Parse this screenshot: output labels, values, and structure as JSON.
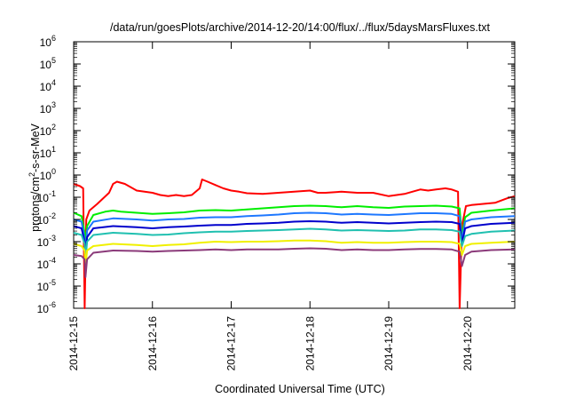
{
  "chart_data": {
    "type": "line",
    "title": "/data/run/goesPlots/archive/2014-12-20/14:00/flux/../flux/5daysMarsFluxes.txt",
    "xlabel": "Coordinated Universal Time (UTC)",
    "ylabel_base": "protons/cm",
    "ylabel_sup": "2",
    "ylabel_rest": "-s-sr-MeV",
    "yscale": "log",
    "ylim_exp": [
      -6,
      6
    ],
    "ytick_exponents": [
      -6,
      -5,
      -4,
      -3,
      -2,
      -1,
      0,
      1,
      2,
      3,
      4,
      5,
      6
    ],
    "ytick_base": "10",
    "xlim_days": [
      0,
      5.6
    ],
    "x_ticks": [
      {
        "label": "2014-12-15",
        "day": 0
      },
      {
        "label": "2014-12-16",
        "day": 1
      },
      {
        "label": "2014-12-17",
        "day": 2
      },
      {
        "label": "2014-12-18",
        "day": 3
      },
      {
        "label": "2014-12-19",
        "day": 4
      },
      {
        "label": "2014-12-20",
        "day": 5
      }
    ],
    "grid": false,
    "legend": "none",
    "series": [
      {
        "color": "#ff0000",
        "points": [
          [
            0.0,
            -0.4
          ],
          [
            0.08,
            -0.5
          ],
          [
            0.12,
            -0.6
          ],
          [
            0.14,
            -6.0
          ],
          [
            0.16,
            -2.0
          ],
          [
            0.2,
            -1.6
          ],
          [
            0.3,
            -1.3
          ],
          [
            0.45,
            -0.8
          ],
          [
            0.5,
            -0.4
          ],
          [
            0.55,
            -0.3
          ],
          [
            0.65,
            -0.4
          ],
          [
            0.8,
            -0.7
          ],
          [
            1.0,
            -0.8
          ],
          [
            1.1,
            -0.9
          ],
          [
            1.2,
            -0.95
          ],
          [
            1.3,
            -0.9
          ],
          [
            1.4,
            -0.95
          ],
          [
            1.5,
            -0.9
          ],
          [
            1.6,
            -0.6
          ],
          [
            1.63,
            -0.2
          ],
          [
            1.7,
            -0.3
          ],
          [
            1.8,
            -0.45
          ],
          [
            1.9,
            -0.6
          ],
          [
            2.0,
            -0.7
          ],
          [
            2.1,
            -0.75
          ],
          [
            2.2,
            -0.82
          ],
          [
            2.4,
            -0.85
          ],
          [
            2.6,
            -0.8
          ],
          [
            2.8,
            -0.75
          ],
          [
            3.0,
            -0.7
          ],
          [
            3.1,
            -0.8
          ],
          [
            3.2,
            -0.8
          ],
          [
            3.4,
            -0.75
          ],
          [
            3.6,
            -0.8
          ],
          [
            3.8,
            -0.8
          ],
          [
            4.0,
            -0.95
          ],
          [
            4.1,
            -0.9
          ],
          [
            4.2,
            -0.85
          ],
          [
            4.3,
            -0.75
          ],
          [
            4.4,
            -0.65
          ],
          [
            4.5,
            -0.7
          ],
          [
            4.6,
            -0.65
          ],
          [
            4.72,
            -0.6
          ],
          [
            4.8,
            -0.65
          ],
          [
            4.88,
            -0.75
          ],
          [
            4.9,
            -6.0
          ],
          [
            4.93,
            -2.3
          ],
          [
            4.98,
            -1.4
          ],
          [
            5.05,
            -1.35
          ],
          [
            5.2,
            -1.3
          ],
          [
            5.35,
            -1.25
          ],
          [
            5.5,
            -1.05
          ],
          [
            5.6,
            -0.95
          ]
        ]
      },
      {
        "color": "#00ee00",
        "points": [
          [
            0.0,
            -1.7
          ],
          [
            0.1,
            -1.85
          ],
          [
            0.14,
            -2.6
          ],
          [
            0.15,
            -3.3
          ],
          [
            0.17,
            -2.3
          ],
          [
            0.25,
            -1.8
          ],
          [
            0.4,
            -1.65
          ],
          [
            0.5,
            -1.6
          ],
          [
            0.6,
            -1.65
          ],
          [
            0.8,
            -1.7
          ],
          [
            1.0,
            -1.75
          ],
          [
            1.2,
            -1.72
          ],
          [
            1.4,
            -1.68
          ],
          [
            1.6,
            -1.6
          ],
          [
            1.8,
            -1.58
          ],
          [
            2.0,
            -1.6
          ],
          [
            2.2,
            -1.55
          ],
          [
            2.4,
            -1.5
          ],
          [
            2.6,
            -1.45
          ],
          [
            2.8,
            -1.4
          ],
          [
            3.0,
            -1.38
          ],
          [
            3.2,
            -1.4
          ],
          [
            3.4,
            -1.45
          ],
          [
            3.6,
            -1.4
          ],
          [
            3.8,
            -1.45
          ],
          [
            4.0,
            -1.48
          ],
          [
            4.2,
            -1.42
          ],
          [
            4.4,
            -1.4
          ],
          [
            4.6,
            -1.38
          ],
          [
            4.8,
            -1.42
          ],
          [
            4.9,
            -1.5
          ],
          [
            4.93,
            -2.8
          ],
          [
            4.97,
            -1.9
          ],
          [
            5.05,
            -1.7
          ],
          [
            5.3,
            -1.6
          ],
          [
            5.6,
            -1.5
          ]
        ]
      },
      {
        "color": "#1e78ff",
        "points": [
          [
            0.0,
            -2.0
          ],
          [
            0.1,
            -2.1
          ],
          [
            0.14,
            -2.9
          ],
          [
            0.15,
            -3.8
          ],
          [
            0.17,
            -2.5
          ],
          [
            0.25,
            -2.1
          ],
          [
            0.5,
            -1.95
          ],
          [
            0.8,
            -2.0
          ],
          [
            1.0,
            -2.05
          ],
          [
            1.2,
            -2.0
          ],
          [
            1.4,
            -1.98
          ],
          [
            1.6,
            -1.92
          ],
          [
            1.8,
            -1.9
          ],
          [
            2.0,
            -1.9
          ],
          [
            2.2,
            -1.85
          ],
          [
            2.4,
            -1.82
          ],
          [
            2.6,
            -1.78
          ],
          [
            2.8,
            -1.72
          ],
          [
            3.0,
            -1.7
          ],
          [
            3.2,
            -1.72
          ],
          [
            3.4,
            -1.78
          ],
          [
            3.6,
            -1.75
          ],
          [
            3.8,
            -1.78
          ],
          [
            4.0,
            -1.8
          ],
          [
            4.2,
            -1.76
          ],
          [
            4.4,
            -1.72
          ],
          [
            4.6,
            -1.72
          ],
          [
            4.8,
            -1.75
          ],
          [
            4.9,
            -1.85
          ],
          [
            4.93,
            -3.0
          ],
          [
            4.97,
            -2.1
          ],
          [
            5.05,
            -2.0
          ],
          [
            5.3,
            -1.9
          ],
          [
            5.6,
            -1.85
          ]
        ]
      },
      {
        "color": "#0000cc",
        "points": [
          [
            0.0,
            -2.3
          ],
          [
            0.1,
            -2.4
          ],
          [
            0.14,
            -3.0
          ],
          [
            0.15,
            -3.9
          ],
          [
            0.17,
            -2.8
          ],
          [
            0.25,
            -2.4
          ],
          [
            0.5,
            -2.3
          ],
          [
            0.8,
            -2.35
          ],
          [
            1.0,
            -2.4
          ],
          [
            1.2,
            -2.35
          ],
          [
            1.4,
            -2.32
          ],
          [
            1.6,
            -2.28
          ],
          [
            1.8,
            -2.25
          ],
          [
            2.0,
            -2.25
          ],
          [
            2.2,
            -2.2
          ],
          [
            2.4,
            -2.18
          ],
          [
            2.6,
            -2.15
          ],
          [
            2.8,
            -2.1
          ],
          [
            3.0,
            -2.08
          ],
          [
            3.2,
            -2.1
          ],
          [
            3.4,
            -2.15
          ],
          [
            3.6,
            -2.12
          ],
          [
            3.8,
            -2.15
          ],
          [
            4.0,
            -2.18
          ],
          [
            4.2,
            -2.15
          ],
          [
            4.4,
            -2.12
          ],
          [
            4.6,
            -2.1
          ],
          [
            4.8,
            -2.12
          ],
          [
            4.9,
            -2.2
          ],
          [
            4.93,
            -3.1
          ],
          [
            4.97,
            -2.4
          ],
          [
            5.05,
            -2.3
          ],
          [
            5.3,
            -2.2
          ],
          [
            5.6,
            -2.15
          ]
        ]
      },
      {
        "color": "#20c0b0",
        "points": [
          [
            0.0,
            -2.6
          ],
          [
            0.1,
            -2.7
          ],
          [
            0.14,
            -3.1
          ],
          [
            0.15,
            -3.9
          ],
          [
            0.17,
            -3.0
          ],
          [
            0.25,
            -2.7
          ],
          [
            0.5,
            -2.6
          ],
          [
            0.8,
            -2.65
          ],
          [
            1.0,
            -2.7
          ],
          [
            1.2,
            -2.68
          ],
          [
            1.4,
            -2.62
          ],
          [
            1.6,
            -2.58
          ],
          [
            1.8,
            -2.55
          ],
          [
            2.0,
            -2.55
          ],
          [
            2.2,
            -2.52
          ],
          [
            2.4,
            -2.5
          ],
          [
            2.6,
            -2.48
          ],
          [
            2.8,
            -2.45
          ],
          [
            3.0,
            -2.42
          ],
          [
            3.2,
            -2.45
          ],
          [
            3.4,
            -2.5
          ],
          [
            3.6,
            -2.48
          ],
          [
            3.8,
            -2.5
          ],
          [
            4.0,
            -2.52
          ],
          [
            4.2,
            -2.5
          ],
          [
            4.4,
            -2.45
          ],
          [
            4.6,
            -2.45
          ],
          [
            4.8,
            -2.48
          ],
          [
            4.9,
            -2.55
          ],
          [
            4.93,
            -3.2
          ],
          [
            4.97,
            -2.75
          ],
          [
            5.05,
            -2.65
          ],
          [
            5.3,
            -2.55
          ],
          [
            5.6,
            -2.5
          ]
        ]
      },
      {
        "color": "#f0f000",
        "points": [
          [
            0.0,
            -3.1
          ],
          [
            0.1,
            -3.2
          ],
          [
            0.14,
            -3.4
          ],
          [
            0.15,
            -4.2
          ],
          [
            0.17,
            -3.4
          ],
          [
            0.25,
            -3.2
          ],
          [
            0.5,
            -3.1
          ],
          [
            0.8,
            -3.15
          ],
          [
            1.0,
            -3.2
          ],
          [
            1.2,
            -3.15
          ],
          [
            1.4,
            -3.12
          ],
          [
            1.6,
            -3.05
          ],
          [
            1.8,
            -3.0
          ],
          [
            2.0,
            -3.02
          ],
          [
            2.2,
            -3.0
          ],
          [
            2.4,
            -3.0
          ],
          [
            2.6,
            -2.98
          ],
          [
            2.8,
            -2.95
          ],
          [
            3.0,
            -2.95
          ],
          [
            3.2,
            -2.98
          ],
          [
            3.4,
            -3.05
          ],
          [
            3.6,
            -3.02
          ],
          [
            3.8,
            -3.05
          ],
          [
            4.0,
            -3.05
          ],
          [
            4.2,
            -3.02
          ],
          [
            4.4,
            -3.0
          ],
          [
            4.6,
            -3.0
          ],
          [
            4.8,
            -3.02
          ],
          [
            4.9,
            -3.1
          ],
          [
            4.93,
            -3.6
          ],
          [
            4.97,
            -3.2
          ],
          [
            5.05,
            -3.1
          ],
          [
            5.3,
            -3.05
          ],
          [
            5.6,
            -3.0
          ]
        ]
      },
      {
        "color": "#8b3a7a",
        "points": [
          [
            0.0,
            -3.6
          ],
          [
            0.1,
            -3.65
          ],
          [
            0.14,
            -3.8
          ],
          [
            0.15,
            -4.6
          ],
          [
            0.17,
            -3.8
          ],
          [
            0.25,
            -3.5
          ],
          [
            0.5,
            -3.4
          ],
          [
            0.8,
            -3.42
          ],
          [
            1.0,
            -3.45
          ],
          [
            1.2,
            -3.42
          ],
          [
            1.4,
            -3.4
          ],
          [
            1.6,
            -3.38
          ],
          [
            1.8,
            -3.35
          ],
          [
            2.0,
            -3.38
          ],
          [
            2.2,
            -3.35
          ],
          [
            2.4,
            -3.35
          ],
          [
            2.6,
            -3.35
          ],
          [
            2.8,
            -3.32
          ],
          [
            3.0,
            -3.3
          ],
          [
            3.2,
            -3.32
          ],
          [
            3.4,
            -3.38
          ],
          [
            3.6,
            -3.35
          ],
          [
            3.8,
            -3.38
          ],
          [
            4.0,
            -3.38
          ],
          [
            4.2,
            -3.35
          ],
          [
            4.4,
            -3.33
          ],
          [
            4.6,
            -3.33
          ],
          [
            4.8,
            -3.35
          ],
          [
            4.9,
            -3.45
          ],
          [
            4.93,
            -4.1
          ],
          [
            4.97,
            -3.6
          ],
          [
            5.05,
            -3.45
          ],
          [
            5.3,
            -3.38
          ],
          [
            5.6,
            -3.35
          ]
        ]
      }
    ]
  }
}
